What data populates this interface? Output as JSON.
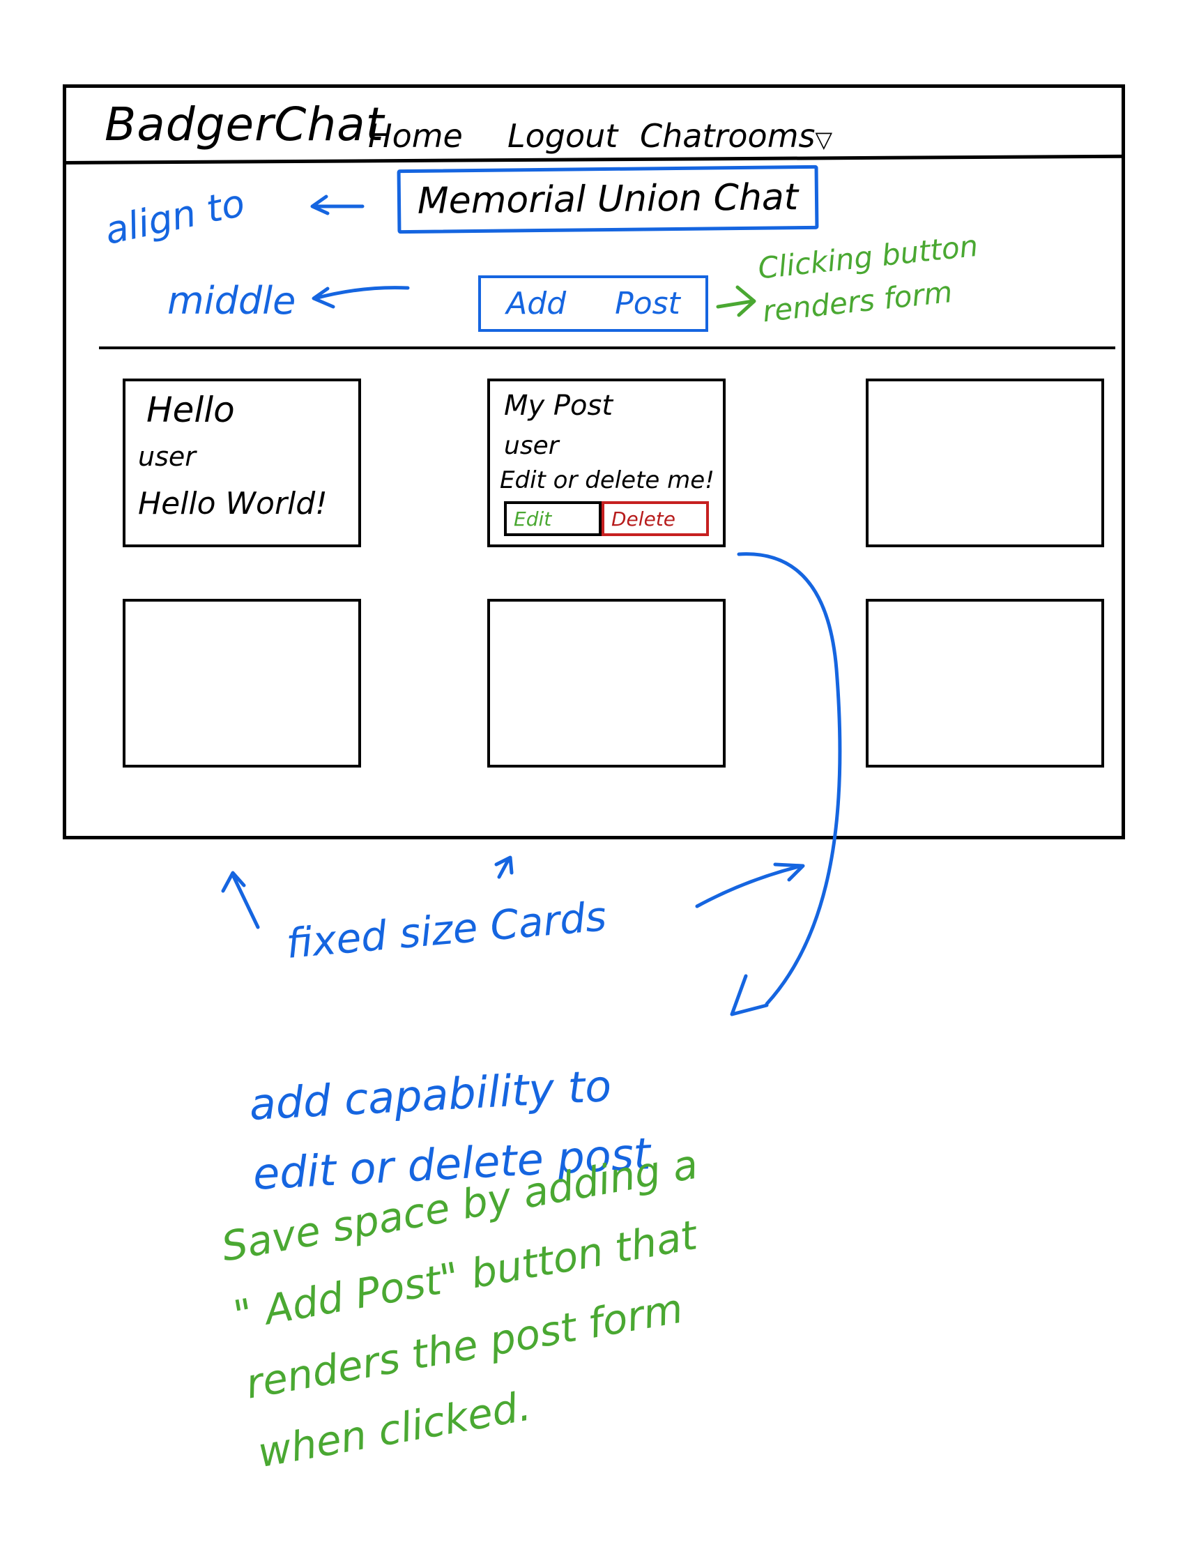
{
  "navbar": {
    "brand": "BadgerChat",
    "links": [
      "Home",
      "Logout",
      "Chatrooms"
    ],
    "dropdown_glyph": "▽"
  },
  "header": {
    "title": "Memorial Union Chat",
    "add_post_label_1": "Add",
    "add_post_label_2": "Post"
  },
  "posts": [
    {
      "title": "Hello",
      "user": "user",
      "body": "Hello World!"
    },
    {
      "title": "My Post",
      "user": "user",
      "body": "Edit or delete me!",
      "edit_label": "Edit",
      "delete_label": "Delete"
    }
  ],
  "annotations": {
    "align": "align to",
    "middle": "middle",
    "clicking": "Clicking button\nrenders form",
    "fixed": "fixed size Cards",
    "capability": "add capability to\nedit or delete post",
    "save": "Save space by adding a\n\" Add Post\" button that\nrenders the post form\nwhen clicked."
  },
  "colors": {
    "ink": "#000000",
    "blue_annotation": "#1565e0",
    "green_annotation": "#4aa832",
    "delete_red": "#c62020"
  }
}
